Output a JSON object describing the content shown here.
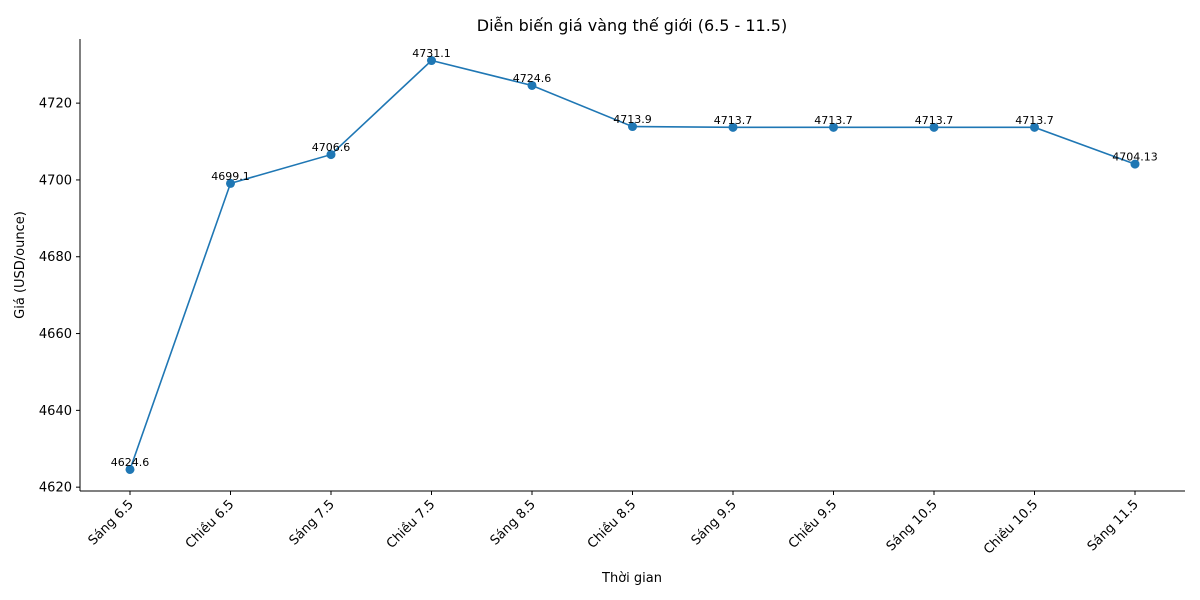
{
  "chart_data": {
    "type": "line",
    "title": "Diễn biến giá vàng thế giới (6.5 - 11.5)",
    "xlabel": "Thời gian",
    "ylabel": "Giá (USD/ounce)",
    "categories": [
      "Sáng 6.5",
      "Chiều 6.5",
      "Sáng 7.5",
      "Chiều 7.5",
      "Sáng 8.5",
      "Chiều 8.5",
      "Sáng 9.5",
      "Chiều 9.5",
      "Sáng 10.5",
      "Chiều 10.5",
      "Sáng 11.5"
    ],
    "series": [
      {
        "values": [
          4624.6,
          4699.1,
          4706.6,
          4731.1,
          4724.6,
          4713.9,
          4713.7,
          4713.7,
          4713.7,
          4713.7,
          4704.13
        ],
        "labels": [
          "4624.6",
          "4699.1",
          "4706.6",
          "4731.1",
          "4724.6",
          "4713.9",
          "4713.7",
          "4713.7",
          "4713.7",
          "4713.7",
          "4704.13"
        ],
        "color": "#1f77b4"
      }
    ],
    "ylim": [
      4619,
      4736.7
    ],
    "yticks": [
      4620,
      4640,
      4660,
      4680,
      4700,
      4720
    ],
    "grid": false,
    "legend": "none"
  }
}
